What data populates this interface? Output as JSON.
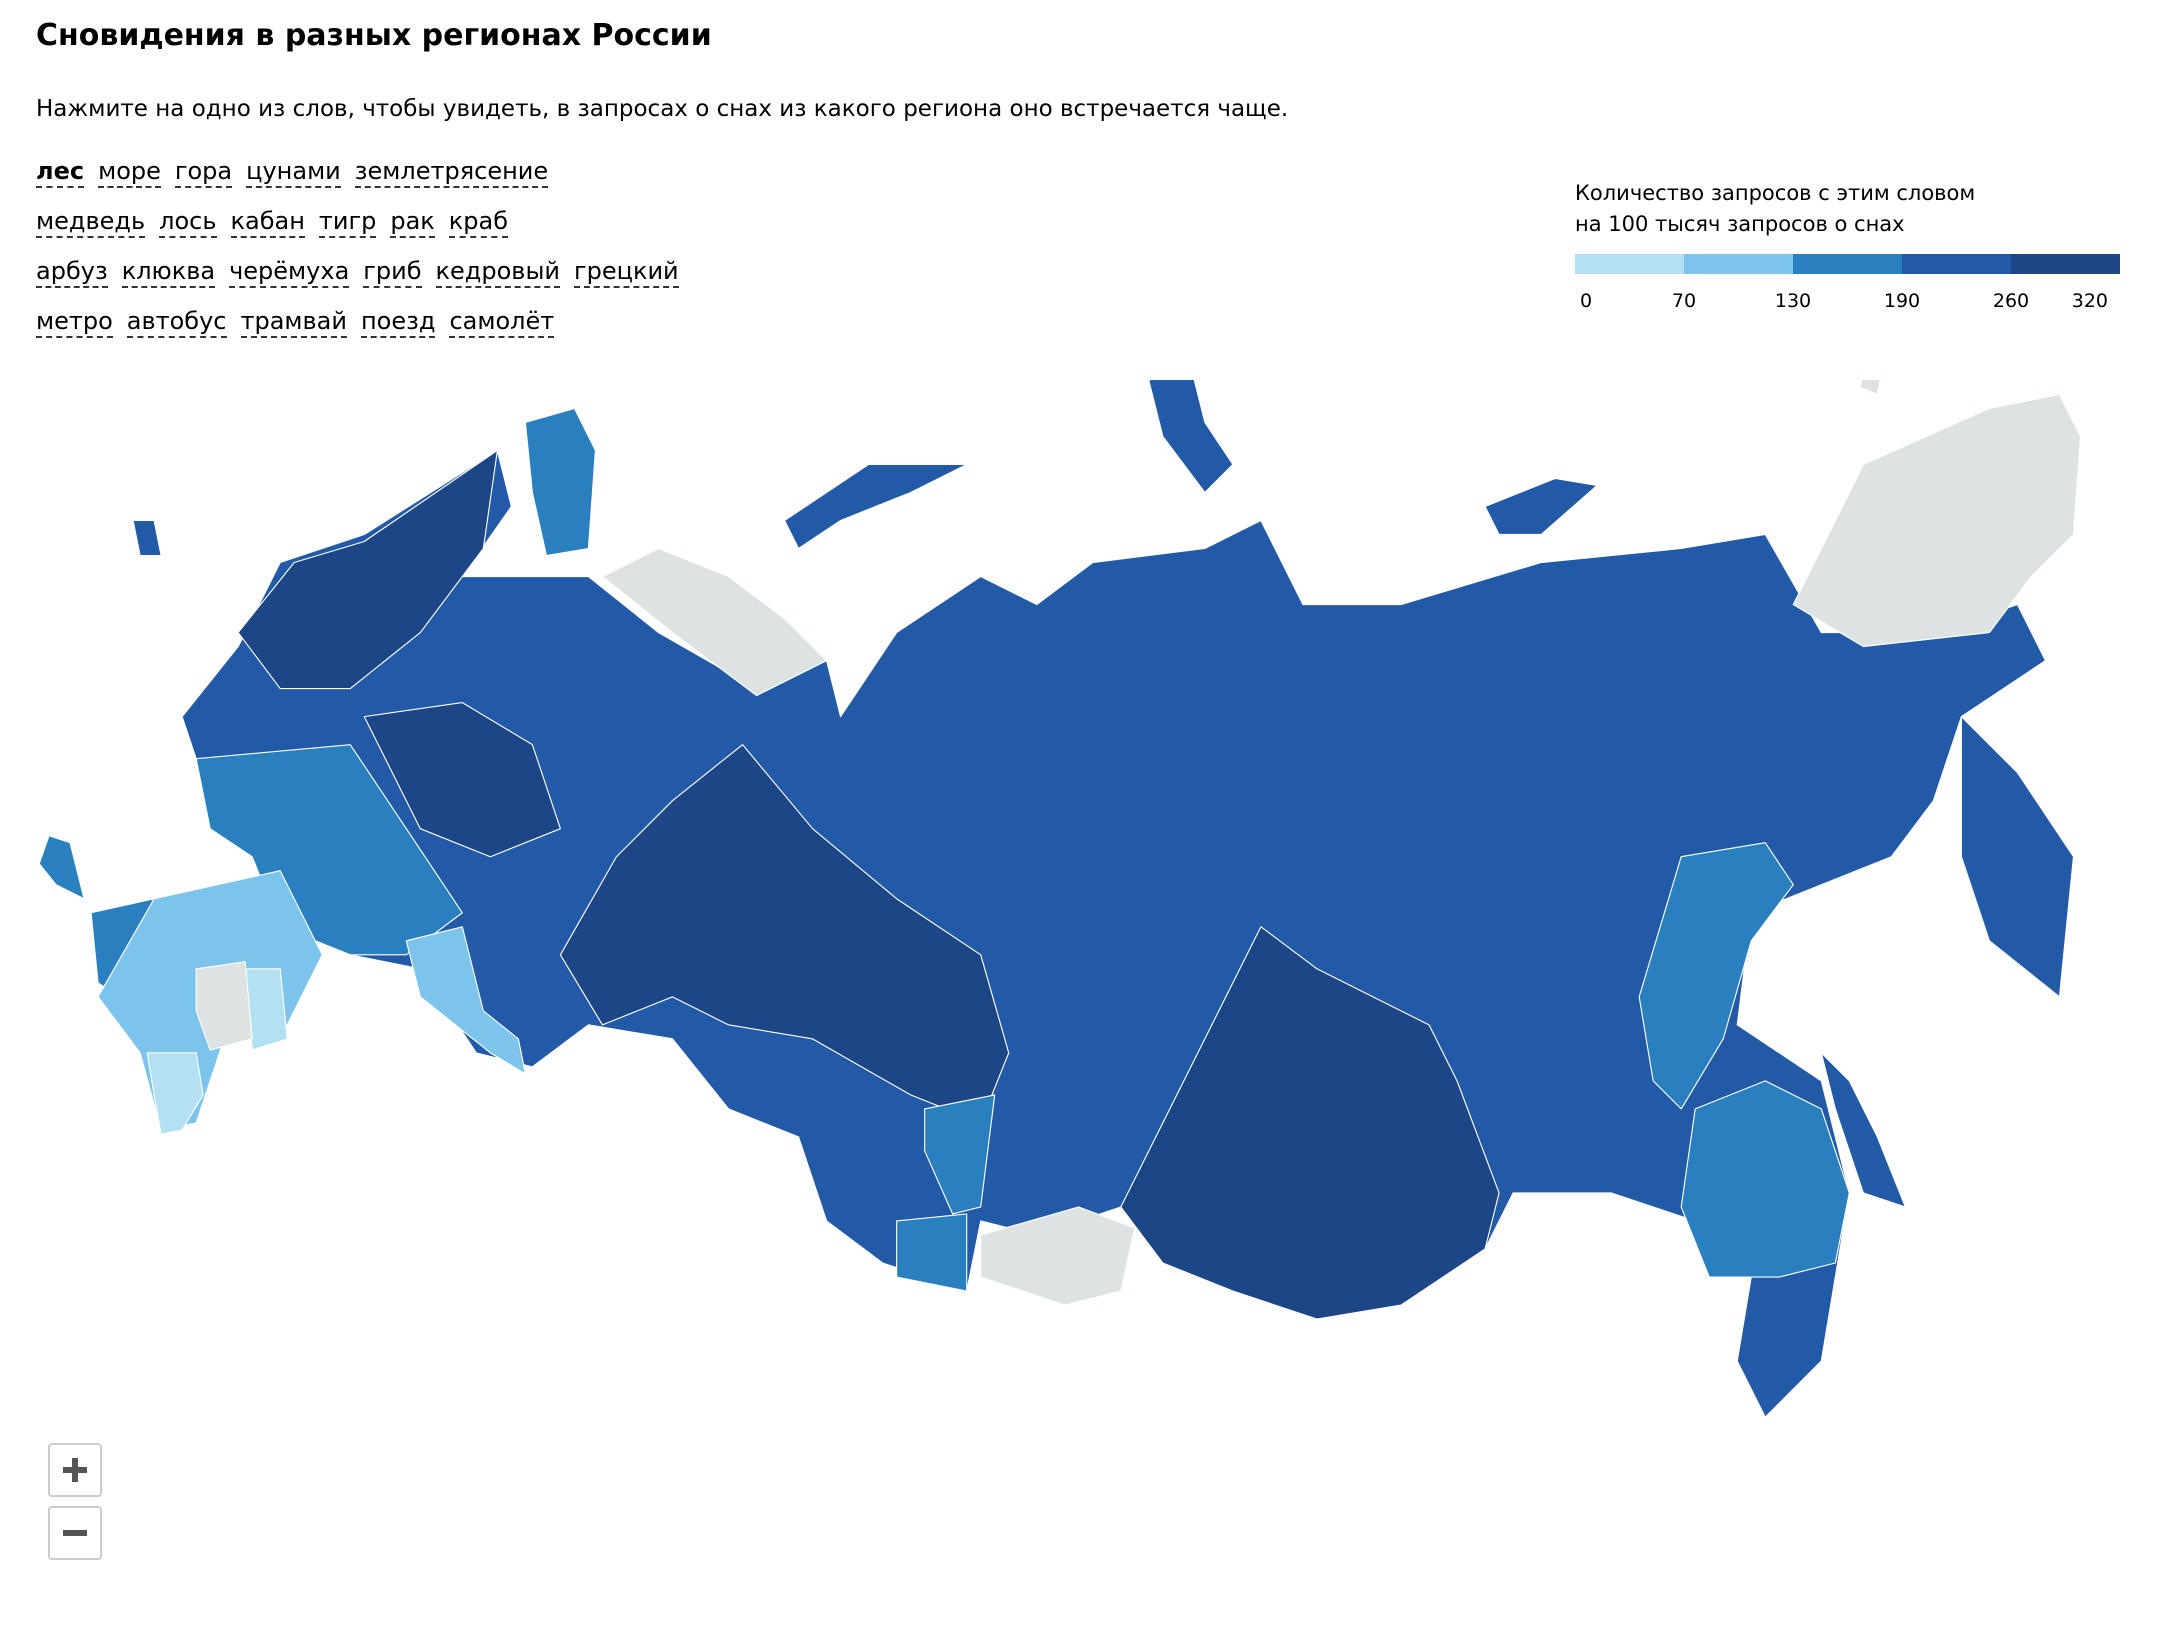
{
  "header": {
    "title": "Сновидения в разных регионах России",
    "subtitle": "Нажмите на одно из слов, чтобы увидеть, в запросах о снах из какого региона оно встречается чаще."
  },
  "words": [
    [
      "лес",
      "море",
      "гора",
      "цунами",
      "землетрясение"
    ],
    [
      "медведь",
      "лось",
      "кабан",
      "тигр",
      "рак",
      "краб"
    ],
    [
      "арбуз",
      "клюква",
      "черёмуха",
      "гриб",
      "кедровый",
      "грецкий"
    ],
    [
      "метро",
      "автобус",
      "трамвай",
      "поезд",
      "самолёт"
    ]
  ],
  "legend": {
    "title": [
      "Количество запросов с этим словом",
      "на 100 тысяч запросов о снах"
    ],
    "colors": [
      "#b4e0f4",
      "#7cc4ec",
      "#2a7fbf",
      "#235aa8",
      "#1d4686"
    ],
    "ticks": [
      0,
      70,
      130,
      190,
      260,
      320
    ]
  }
}
